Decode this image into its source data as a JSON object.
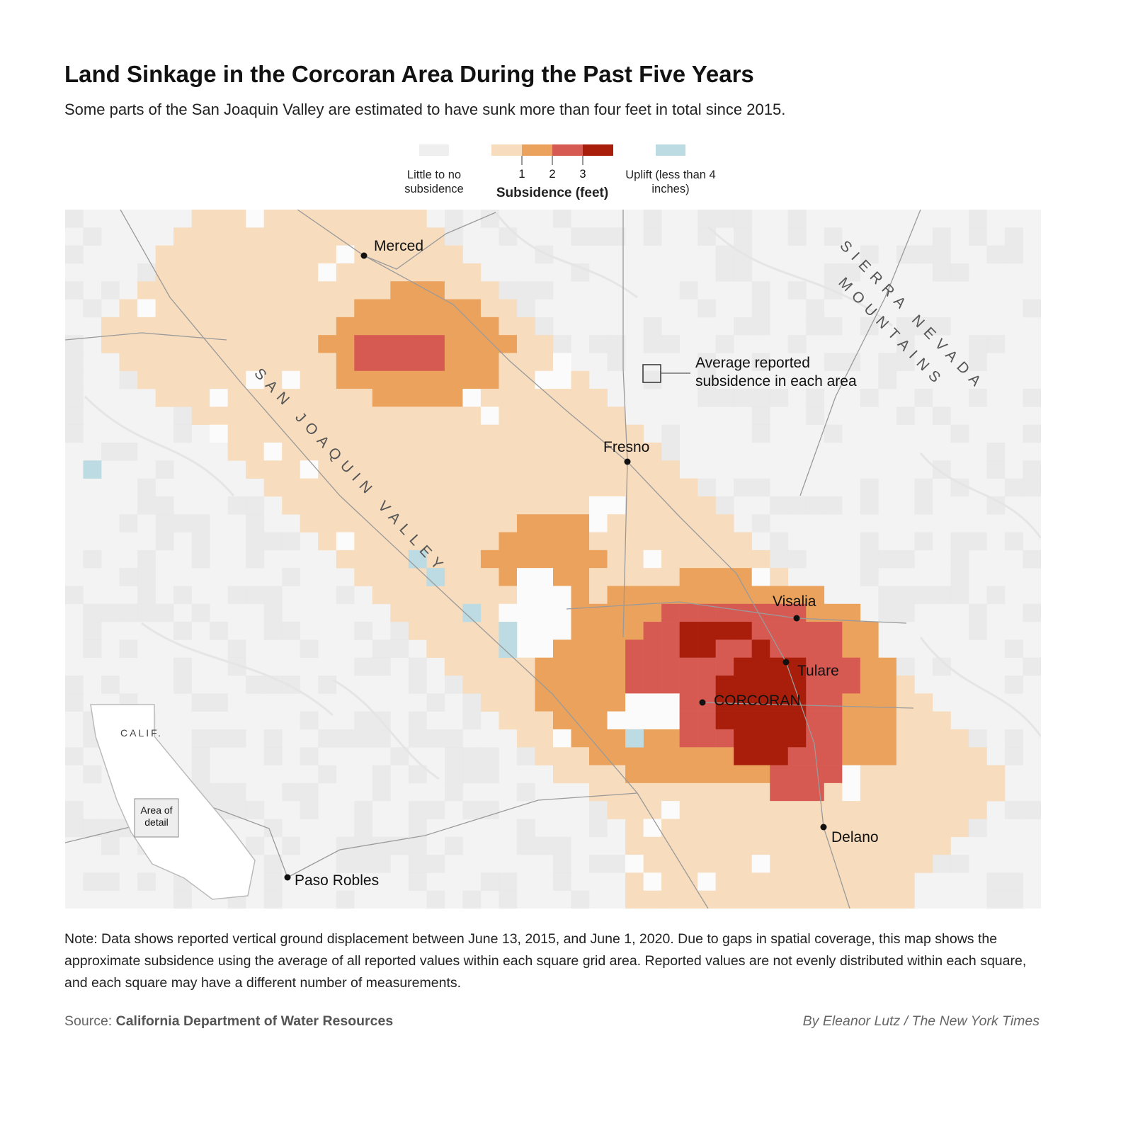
{
  "header": {
    "title": "Land Sinkage in the Corcoran Area During the Past Five Years",
    "subtitle": "Some parts of the San Joaquin Valley are estimated to have sunk more than four feet in total since 2015."
  },
  "legend": {
    "none_label": "Little to no subsidence",
    "subsidence_title": "Subsidence (feet)",
    "ticks": [
      1,
      2,
      3
    ],
    "uplift_label": "Uplift (less than 4 inches)"
  },
  "map": {
    "places": [
      "Merced",
      "Fresno",
      "Visalia",
      "Tulare",
      "CORCORAN",
      "Delano",
      "Paso Robles"
    ],
    "regions": [
      "SAN JOAQUIN VALLEY",
      "SIERRA NEVADA",
      "MOUNTAINS"
    ],
    "annotation": "Average reported subsidence in each area",
    "inset": {
      "state": "CALIF.",
      "box": "Area of detail"
    }
  },
  "footer": {
    "note": "Note: Data shows reported vertical ground displacement between June 13, 2015, and June 1, 2020. Due to gaps in spatial coverage, this map shows the approximate subsidence using the average of all reported values within each square grid area. Reported values are not evenly distributed within each square, and each square may have a different number of measurements.",
    "source_label": "Source:",
    "source": "California Department of Water Resources",
    "credit": "By Eleanor Lutz / The New York Times"
  }
}
